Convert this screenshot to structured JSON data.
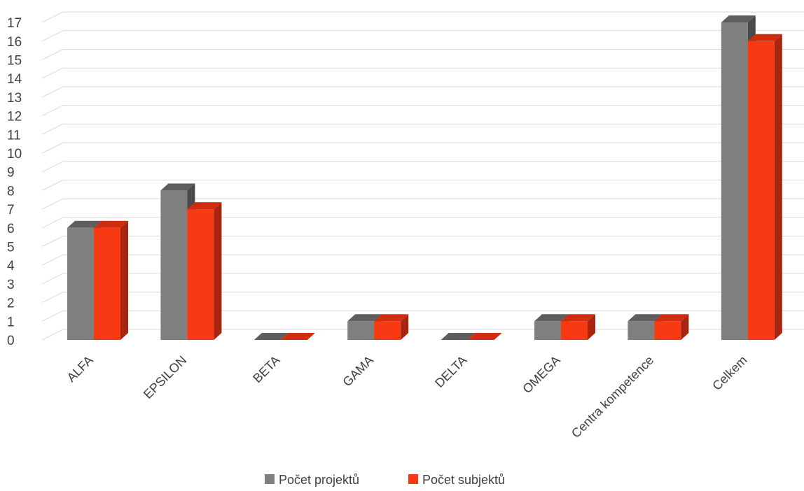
{
  "chart_data": {
    "type": "bar",
    "style": "3d-clustered-column",
    "categories": [
      "ALFA",
      "EPSILON",
      "BETA",
      "GAMA",
      "DELTA",
      "OMEGA",
      "Centra kompetence",
      "Celkem"
    ],
    "series": [
      {
        "name": "Počet projektů",
        "values": [
          6,
          8,
          0,
          1,
          0,
          1,
          1,
          17
        ],
        "color": "#7f7f7f",
        "side_color": "#4a4a4a",
        "top_color": "#5e5e5e"
      },
      {
        "name": "Počet subjektů",
        "values": [
          6,
          7,
          0,
          1,
          0,
          1,
          1,
          16
        ],
        "color": "#f83a14",
        "side_color": "#a82610",
        "top_color": "#d02d10"
      }
    ],
    "y_ticks": [
      "0",
      "1",
      "2",
      "3",
      "4",
      "5",
      "6",
      "7",
      "8",
      "9",
      "10",
      "11",
      "12",
      "13",
      "14",
      "15",
      "16",
      "17"
    ],
    "ylim": [
      0,
      17
    ],
    "grid": true,
    "legend_position": "bottom-center",
    "title": "",
    "xlabel": "",
    "ylabel": ""
  }
}
